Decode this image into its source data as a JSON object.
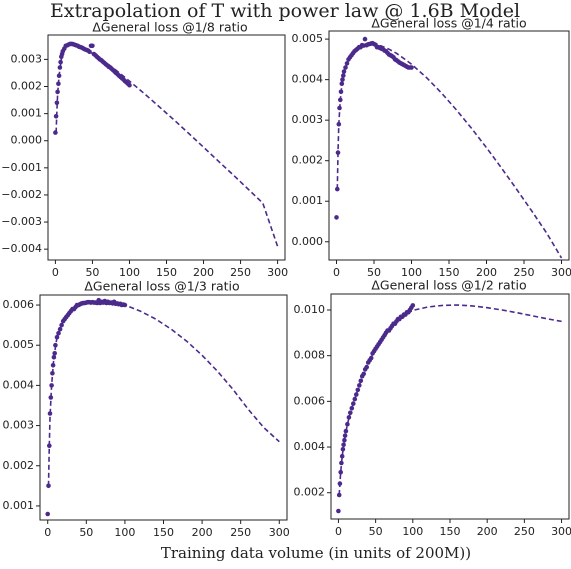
{
  "figure": {
    "title": "Extrapolation of T with power law @ 1.6B Model",
    "xlabel": "Training  data volume (in units of 200M))"
  },
  "colors": {
    "series": "#4b2a8c"
  },
  "chart_data": [
    {
      "type": "scatter",
      "title": "ΔGeneral loss @1/8 ratio",
      "xlim": [
        -10,
        310
      ],
      "ylim": [
        -0.0044,
        0.0039
      ],
      "xticks": [
        0,
        50,
        100,
        150,
        200,
        250,
        300
      ],
      "xtick_labels": [
        "0",
        "50",
        "100",
        "150",
        "200",
        "250",
        "300"
      ],
      "yticks": [
        -0.004,
        -0.003,
        -0.002,
        -0.001,
        0.0,
        0.001,
        0.002,
        0.003
      ],
      "ytick_labels": [
        "−0.004",
        "−0.003",
        "−0.002",
        "−0.001",
        "0.000",
        "0.001",
        "0.002",
        "0.003"
      ],
      "points": [
        [
          0,
          0.0003
        ],
        [
          1,
          0.0009
        ],
        [
          2,
          0.0014
        ],
        [
          3,
          0.0018
        ],
        [
          4,
          0.0021
        ],
        [
          5,
          0.0024
        ],
        [
          6,
          0.0027
        ],
        [
          7,
          0.0029
        ],
        [
          8,
          0.0031
        ],
        [
          9,
          0.0032
        ],
        [
          10,
          0.0033
        ],
        [
          12,
          0.0034
        ],
        [
          14,
          0.0035
        ],
        [
          16,
          0.00352
        ],
        [
          18,
          0.00355
        ],
        [
          20,
          0.00357
        ],
        [
          22,
          0.00357
        ],
        [
          24,
          0.00356
        ],
        [
          26,
          0.00354
        ],
        [
          28,
          0.00352
        ],
        [
          30,
          0.0035
        ],
        [
          32,
          0.00347
        ],
        [
          34,
          0.00345
        ],
        [
          36,
          0.00343
        ],
        [
          38,
          0.0034
        ],
        [
          40,
          0.00337
        ],
        [
          42,
          0.00335
        ],
        [
          44,
          0.00333
        ],
        [
          46,
          0.00328
        ],
        [
          48,
          0.0035
        ],
        [
          50,
          0.0035
        ],
        [
          52,
          0.0032
        ],
        [
          54,
          0.00315
        ],
        [
          56,
          0.0031
        ],
        [
          58,
          0.00305
        ],
        [
          60,
          0.003
        ],
        [
          62,
          0.00297
        ],
        [
          64,
          0.00292
        ],
        [
          66,
          0.00287
        ],
        [
          68,
          0.00282
        ],
        [
          70,
          0.00278
        ],
        [
          72,
          0.00273
        ],
        [
          74,
          0.0027
        ],
        [
          76,
          0.00265
        ],
        [
          78,
          0.0026
        ],
        [
          80,
          0.00255
        ],
        [
          82,
          0.0025
        ],
        [
          84,
          0.00245
        ],
        [
          86,
          0.0024
        ],
        [
          88,
          0.00235
        ],
        [
          90,
          0.0023
        ],
        [
          92,
          0.00226
        ],
        [
          94,
          0.0022
        ],
        [
          96,
          0.00215
        ],
        [
          98,
          0.0021
        ],
        [
          100,
          0.00205
        ]
      ],
      "fit_x": [
        1,
        2,
        3,
        5,
        8,
        12,
        16,
        20,
        25,
        30,
        40,
        50,
        60,
        70,
        80,
        90,
        100,
        120,
        140,
        160,
        180,
        200,
        220,
        240,
        260,
        280,
        300
      ],
      "fit_y": [
        0.0003,
        0.0011,
        0.0017,
        0.0024,
        0.003,
        0.00338,
        0.00352,
        0.00356,
        0.00356,
        0.0035,
        0.00338,
        0.00322,
        0.00304,
        0.00285,
        0.00264,
        0.00242,
        0.0022,
        0.00174,
        0.00126,
        0.00077,
        0.00027,
        -0.00024,
        -0.00075,
        -0.00126,
        -0.00178,
        -0.0023,
        -0.0039
      ]
    },
    {
      "type": "scatter",
      "title": "ΔGeneral loss @1/4 ratio",
      "xlim": [
        -10,
        310
      ],
      "ylim": [
        -0.00045,
        0.0052
      ],
      "xticks": [
        0,
        50,
        100,
        150,
        200,
        250,
        300
      ],
      "xtick_labels": [
        "0",
        "50",
        "100",
        "150",
        "200",
        "250",
        "300"
      ],
      "yticks": [
        0.0,
        0.001,
        0.002,
        0.003,
        0.004,
        0.005
      ],
      "ytick_labels": [
        "0.000",
        "0.001",
        "0.002",
        "0.003",
        "0.004",
        "0.005"
      ],
      "points": [
        [
          0,
          0.0006
        ],
        [
          1,
          0.0013
        ],
        [
          2,
          0.0022
        ],
        [
          3,
          0.0029
        ],
        [
          4,
          0.0033
        ],
        [
          5,
          0.0035
        ],
        [
          6,
          0.0037
        ],
        [
          7,
          0.0039
        ],
        [
          8,
          0.004
        ],
        [
          9,
          0.0041
        ],
        [
          10,
          0.0042
        ],
        [
          12,
          0.0043
        ],
        [
          14,
          0.0044
        ],
        [
          16,
          0.0045
        ],
        [
          18,
          0.00455
        ],
        [
          20,
          0.0046
        ],
        [
          22,
          0.00465
        ],
        [
          24,
          0.0047
        ],
        [
          26,
          0.00473
        ],
        [
          28,
          0.00476
        ],
        [
          30,
          0.0048
        ],
        [
          32,
          0.0048
        ],
        [
          34,
          0.00485
        ],
        [
          36,
          0.00484
        ],
        [
          38,
          0.005
        ],
        [
          40,
          0.00485
        ],
        [
          42,
          0.00487
        ],
        [
          44,
          0.00488
        ],
        [
          46,
          0.00489
        ],
        [
          48,
          0.0049
        ],
        [
          50,
          0.00488
        ],
        [
          52,
          0.00486
        ],
        [
          54,
          0.0048
        ],
        [
          56,
          0.0048
        ],
        [
          58,
          0.00478
        ],
        [
          60,
          0.00476
        ],
        [
          62,
          0.00475
        ],
        [
          64,
          0.00472
        ],
        [
          66,
          0.0047
        ],
        [
          68,
          0.00466
        ],
        [
          70,
          0.00462
        ],
        [
          72,
          0.0046
        ],
        [
          74,
          0.00458
        ],
        [
          76,
          0.00455
        ],
        [
          78,
          0.0045
        ],
        [
          80,
          0.00448
        ],
        [
          82,
          0.00445
        ],
        [
          84,
          0.00442
        ],
        [
          86,
          0.0044
        ],
        [
          88,
          0.00438
        ],
        [
          90,
          0.00436
        ],
        [
          92,
          0.00434
        ],
        [
          94,
          0.00432
        ],
        [
          96,
          0.0043
        ],
        [
          98,
          0.0043
        ],
        [
          100,
          0.0043
        ]
      ],
      "fit_x": [
        1,
        2,
        3,
        5,
        8,
        12,
        16,
        20,
        25,
        30,
        40,
        50,
        60,
        70,
        80,
        90,
        100,
        120,
        140,
        160,
        180,
        200,
        220,
        240,
        260,
        280,
        300
      ],
      "fit_y": [
        0.0013,
        0.0022,
        0.0029,
        0.0035,
        0.004,
        0.0043,
        0.00449,
        0.0046,
        0.0047,
        0.00478,
        0.00486,
        0.00487,
        0.00483,
        0.00475,
        0.00465,
        0.00452,
        0.00438,
        0.00405,
        0.00367,
        0.00325,
        0.0028,
        0.00232,
        0.00182,
        0.0013,
        0.00077,
        0.00022,
        -0.0004
      ]
    },
    {
      "type": "scatter",
      "title": "ΔGeneral loss @1/3 ratio",
      "xlim": [
        -10,
        310
      ],
      "ylim": [
        0.00065,
        0.00625
      ],
      "xticks": [
        0,
        50,
        100,
        150,
        200,
        250,
        300
      ],
      "xtick_labels": [
        "0",
        "50",
        "100",
        "150",
        "200",
        "250",
        "300"
      ],
      "yticks": [
        0.001,
        0.002,
        0.003,
        0.004,
        0.005,
        0.006
      ],
      "ytick_labels": [
        "0.001",
        "0.002",
        "0.003",
        "0.004",
        "0.005",
        "0.006"
      ],
      "points": [
        [
          0,
          0.0008
        ],
        [
          1,
          0.0015
        ],
        [
          2,
          0.0025
        ],
        [
          3,
          0.0033
        ],
        [
          4,
          0.0037
        ],
        [
          5,
          0.004
        ],
        [
          6,
          0.0043
        ],
        [
          7,
          0.0045
        ],
        [
          8,
          0.0047
        ],
        [
          9,
          0.0048
        ],
        [
          10,
          0.005
        ],
        [
          12,
          0.0052
        ],
        [
          14,
          0.0053
        ],
        [
          16,
          0.0054
        ],
        [
          18,
          0.0055
        ],
        [
          20,
          0.0056
        ],
        [
          22,
          0.00565
        ],
        [
          24,
          0.0057
        ],
        [
          26,
          0.00575
        ],
        [
          28,
          0.0058
        ],
        [
          30,
          0.00585
        ],
        [
          32,
          0.0059
        ],
        [
          34,
          0.0059
        ],
        [
          36,
          0.00595
        ],
        [
          38,
          0.006
        ],
        [
          40,
          0.006
        ],
        [
          42,
          0.00602
        ],
        [
          44,
          0.00604
        ],
        [
          46,
          0.00605
        ],
        [
          48,
          0.00605
        ],
        [
          50,
          0.00606
        ],
        [
          52,
          0.00607
        ],
        [
          54,
          0.00607
        ],
        [
          56,
          0.00606
        ],
        [
          58,
          0.00607
        ],
        [
          60,
          0.00606
        ],
        [
          62,
          0.00606
        ],
        [
          64,
          0.00605
        ],
        [
          66,
          0.00612
        ],
        [
          68,
          0.00605
        ],
        [
          70,
          0.00608
        ],
        [
          72,
          0.00606
        ],
        [
          74,
          0.0061
        ],
        [
          76,
          0.00605
        ],
        [
          78,
          0.00608
        ],
        [
          80,
          0.00605
        ],
        [
          82,
          0.00606
        ],
        [
          84,
          0.00604
        ],
        [
          86,
          0.00608
        ],
        [
          88,
          0.00603
        ],
        [
          90,
          0.00604
        ],
        [
          92,
          0.00602
        ],
        [
          94,
          0.00603
        ],
        [
          96,
          0.006
        ],
        [
          98,
          0.00601
        ],
        [
          100,
          0.006
        ]
      ],
      "fit_x": [
        1,
        2,
        3,
        5,
        8,
        12,
        16,
        20,
        25,
        30,
        40,
        50,
        60,
        70,
        80,
        90,
        100,
        120,
        140,
        160,
        180,
        200,
        220,
        240,
        260,
        280,
        300
      ],
      "fit_y": [
        0.0015,
        0.0025,
        0.0032,
        0.004,
        0.0047,
        0.0052,
        0.0054,
        0.0056,
        0.00575,
        0.00585,
        0.00597,
        0.00604,
        0.00607,
        0.00608,
        0.00607,
        0.00604,
        0.006,
        0.00585,
        0.00565,
        0.0054,
        0.0051,
        0.00475,
        0.00435,
        0.0039,
        0.0034,
        0.00295,
        0.0026
      ]
    },
    {
      "type": "scatter",
      "title": "ΔGeneral loss @1/2 ratio",
      "xlim": [
        -10,
        310
      ],
      "ylim": [
        0.00085,
        0.0107
      ],
      "xticks": [
        0,
        50,
        100,
        150,
        200,
        250,
        300
      ],
      "xtick_labels": [
        "0",
        "50",
        "100",
        "150",
        "200",
        "250",
        "300"
      ],
      "yticks": [
        0.002,
        0.004,
        0.006,
        0.008,
        0.01
      ],
      "ytick_labels": [
        "0.002",
        "0.004",
        "0.006",
        "0.008",
        "0.010"
      ],
      "points": [
        [
          0,
          0.0012
        ],
        [
          1,
          0.0019
        ],
        [
          2,
          0.0024
        ],
        [
          3,
          0.0029
        ],
        [
          4,
          0.0033
        ],
        [
          5,
          0.0036
        ],
        [
          6,
          0.0039
        ],
        [
          7,
          0.0041
        ],
        [
          8,
          0.0043
        ],
        [
          9,
          0.0045
        ],
        [
          10,
          0.0047
        ],
        [
          12,
          0.005
        ],
        [
          14,
          0.0053
        ],
        [
          16,
          0.0055
        ],
        [
          18,
          0.0057
        ],
        [
          20,
          0.0059
        ],
        [
          22,
          0.0061
        ],
        [
          24,
          0.0063
        ],
        [
          26,
          0.0065
        ],
        [
          28,
          0.0067
        ],
        [
          30,
          0.0069
        ],
        [
          32,
          0.0071
        ],
        [
          34,
          0.0072
        ],
        [
          36,
          0.0074
        ],
        [
          38,
          0.0075
        ],
        [
          40,
          0.0077
        ],
        [
          42,
          0.0078
        ],
        [
          44,
          0.0079
        ],
        [
          46,
          0.0081
        ],
        [
          48,
          0.0082
        ],
        [
          50,
          0.0083
        ],
        [
          52,
          0.0084
        ],
        [
          54,
          0.0085
        ],
        [
          56,
          0.0086
        ],
        [
          58,
          0.0087
        ],
        [
          60,
          0.0088
        ],
        [
          62,
          0.0089
        ],
        [
          64,
          0.009
        ],
        [
          66,
          0.0091
        ],
        [
          68,
          0.0091
        ],
        [
          70,
          0.0092
        ],
        [
          72,
          0.0093
        ],
        [
          74,
          0.0094
        ],
        [
          76,
          0.0094
        ],
        [
          78,
          0.0095
        ],
        [
          80,
          0.0096
        ],
        [
          82,
          0.0096
        ],
        [
          84,
          0.0097
        ],
        [
          86,
          0.0097
        ],
        [
          88,
          0.0098
        ],
        [
          90,
          0.0098
        ],
        [
          92,
          0.0099
        ],
        [
          94,
          0.0099
        ],
        [
          96,
          0.01
        ],
        [
          98,
          0.0101
        ],
        [
          100,
          0.0102
        ]
      ],
      "fit_x": [
        1,
        2,
        3,
        5,
        8,
        12,
        16,
        20,
        25,
        30,
        40,
        50,
        60,
        70,
        80,
        90,
        100,
        120,
        140,
        160,
        180,
        200,
        220,
        240,
        260,
        280,
        300
      ],
      "fit_y": [
        0.0019,
        0.0024,
        0.0029,
        0.0036,
        0.0043,
        0.005,
        0.0055,
        0.0059,
        0.0064,
        0.0069,
        0.0077,
        0.0083,
        0.0088,
        0.0092,
        0.0095,
        0.0098,
        0.00998,
        0.01013,
        0.0102,
        0.01022,
        0.01018,
        0.0101,
        0.01,
        0.00988,
        0.00975,
        0.00962,
        0.0095
      ]
    }
  ]
}
